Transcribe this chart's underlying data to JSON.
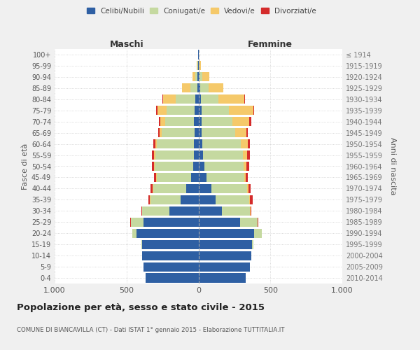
{
  "age_groups": [
    "0-4",
    "5-9",
    "10-14",
    "15-19",
    "20-24",
    "25-29",
    "30-34",
    "35-39",
    "40-44",
    "45-49",
    "50-54",
    "55-59",
    "60-64",
    "65-69",
    "70-74",
    "75-79",
    "80-84",
    "85-89",
    "90-94",
    "95-99",
    "100+"
  ],
  "birth_years": [
    "2010-2014",
    "2005-2009",
    "2000-2004",
    "1995-1999",
    "1990-1994",
    "1985-1989",
    "1980-1984",
    "1975-1979",
    "1970-1974",
    "1965-1969",
    "1960-1964",
    "1955-1959",
    "1950-1954",
    "1945-1949",
    "1940-1944",
    "1935-1939",
    "1930-1934",
    "1925-1929",
    "1920-1924",
    "1915-1919",
    "≤ 1914"
  ],
  "colors": {
    "celibe": "#2E5FA3",
    "coniugato": "#C5D9A0",
    "vedovo": "#F5C96A",
    "divorziato": "#D42B2B"
  },
  "male": {
    "celibe": [
      365,
      380,
      390,
      390,
      430,
      380,
      200,
      125,
      85,
      50,
      35,
      30,
      30,
      25,
      30,
      25,
      20,
      8,
      5,
      3,
      2
    ],
    "coniugato": [
      0,
      0,
      0,
      5,
      30,
      90,
      190,
      210,
      230,
      240,
      270,
      270,
      260,
      230,
      200,
      195,
      140,
      50,
      15,
      5,
      0
    ],
    "vedovo": [
      0,
      0,
      0,
      0,
      0,
      2,
      2,
      3,
      3,
      5,
      5,
      10,
      10,
      15,
      35,
      65,
      85,
      55,
      20,
      5,
      0
    ],
    "divorziato": [
      0,
      0,
      0,
      0,
      0,
      3,
      5,
      10,
      15,
      15,
      15,
      15,
      15,
      10,
      10,
      10,
      5,
      0,
      0,
      0,
      0
    ]
  },
  "female": {
    "nubile": [
      330,
      360,
      365,
      370,
      385,
      290,
      165,
      120,
      90,
      55,
      40,
      30,
      25,
      20,
      20,
      20,
      15,
      10,
      5,
      3,
      2
    ],
    "coniugata": [
      0,
      0,
      0,
      10,
      55,
      120,
      195,
      235,
      250,
      265,
      275,
      280,
      270,
      235,
      215,
      190,
      125,
      60,
      20,
      5,
      0
    ],
    "vedova": [
      0,
      0,
      0,
      0,
      0,
      2,
      3,
      5,
      8,
      10,
      20,
      30,
      50,
      80,
      120,
      170,
      180,
      105,
      50,
      10,
      0
    ],
    "divorziata": [
      0,
      0,
      0,
      0,
      0,
      3,
      5,
      15,
      15,
      15,
      20,
      20,
      15,
      10,
      10,
      5,
      5,
      0,
      0,
      0,
      0
    ]
  },
  "xlim": 1000,
  "title": "Popolazione per età, sesso e stato civile - 2015",
  "subtitle": "COMUNE DI BIANCAVILLA (CT) - Dati ISTAT 1° gennaio 2015 - Elaborazione TUTTITALIA.IT",
  "xlabel_left": "Maschi",
  "xlabel_right": "Femmine",
  "ylabel_left": "Fasce di età",
  "ylabel_right": "Anni di nascita",
  "background_color": "#f0f0f0",
  "plot_background": "#ffffff"
}
